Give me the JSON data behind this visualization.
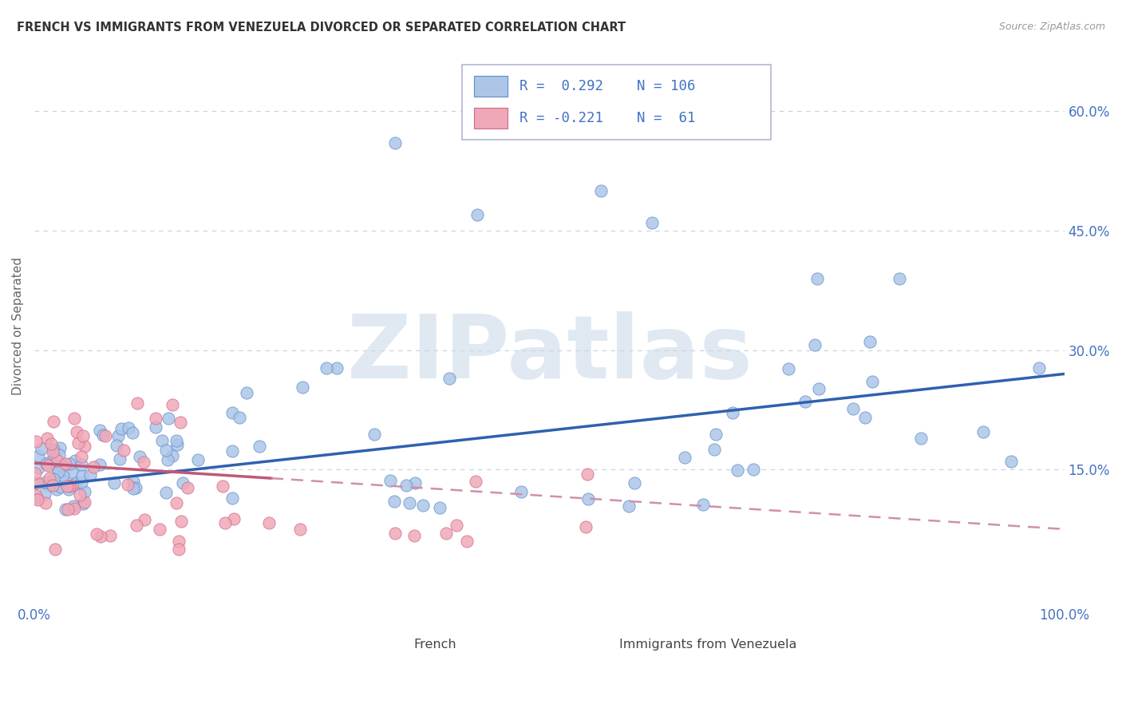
{
  "title": "FRENCH VS IMMIGRANTS FROM VENEZUELA DIVORCED OR SEPARATED CORRELATION CHART",
  "source": "Source: ZipAtlas.com",
  "ylabel": "Divorced or Separated",
  "xlim": [
    0.0,
    1.0
  ],
  "ylim": [
    -0.02,
    0.68
  ],
  "french_R": 0.292,
  "french_N": 106,
  "venezuela_R": -0.221,
  "venezuela_N": 61,
  "blue_color": "#adc6e8",
  "blue_edge": "#5b8dc8",
  "blue_line": "#3060b0",
  "pink_color": "#f0a8b8",
  "pink_edge": "#d06888",
  "pink_line": "#c05878",
  "pink_dashed": "#d090a8",
  "watermark": "ZIPatlas",
  "watermark_color": "#c8d8e8",
  "grid_color": "#c8d0e0",
  "background_color": "#ffffff",
  "title_color": "#333333",
  "axis_color": "#4472c4",
  "fr_trend_y0": 0.128,
  "fr_trend_y1": 0.27,
  "vz_trend_y0": 0.158,
  "vz_trend_y1": 0.075
}
